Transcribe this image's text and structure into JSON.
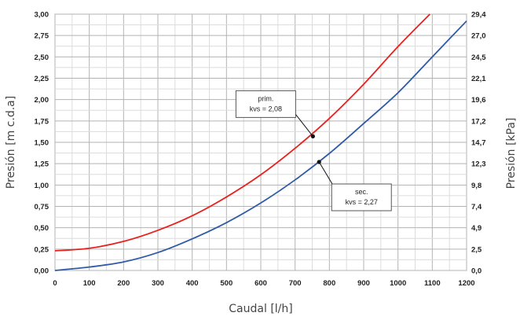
{
  "chart_data": {
    "type": "line",
    "xlabel": "Caudal [l/h]",
    "ylabel_left": "Presión [m c.d.a]",
    "ylabel_right": "Presión [kPa]",
    "xlim": [
      0,
      1200
    ],
    "ylim": [
      0,
      3.0
    ],
    "x_ticks": [
      "0",
      "100",
      "200",
      "300",
      "400",
      "500",
      "600",
      "700",
      "800",
      "900",
      "1000",
      "1100",
      "1200"
    ],
    "y_ticks_left": [
      "0,00",
      "0,25",
      "0,50",
      "0,75",
      "1,00",
      "1,25",
      "1,50",
      "1,75",
      "2,00",
      "2,25",
      "2,50",
      "2,75",
      "3,00"
    ],
    "y_ticks_right": [
      "0,0",
      "2,5",
      "4,9",
      "7,4",
      "9,8",
      "12,3",
      "14,7",
      "17,2",
      "19,6",
      "22,1",
      "24,5",
      "27,0",
      "29,4"
    ],
    "grid": true,
    "series": [
      {
        "color": "#e8211d",
        "x": [
          0,
          100,
          200,
          300,
          400,
          500,
          600,
          700,
          800,
          900,
          1000,
          1093
        ],
        "y": [
          0.23,
          0.26,
          0.34,
          0.47,
          0.64,
          0.86,
          1.12,
          1.43,
          1.78,
          2.18,
          2.62,
          3.0
        ]
      },
      {
        "color": "#2f5aa8",
        "x": [
          0,
          100,
          200,
          300,
          400,
          500,
          600,
          700,
          800,
          900,
          1000,
          1100,
          1200
        ],
        "y": [
          0.0,
          0.04,
          0.1,
          0.21,
          0.37,
          0.56,
          0.79,
          1.06,
          1.37,
          1.72,
          2.08,
          2.5,
          2.92
        ]
      }
    ],
    "annotations": [
      {
        "lines": [
          "prim.",
          "kvs = 2,08"
        ],
        "point": [
          752,
          1.57
        ],
        "position": "left"
      },
      {
        "lines": [
          "sec.",
          "kvs = 2,27"
        ],
        "point": [
          770,
          1.27
        ],
        "position": "right"
      }
    ]
  }
}
